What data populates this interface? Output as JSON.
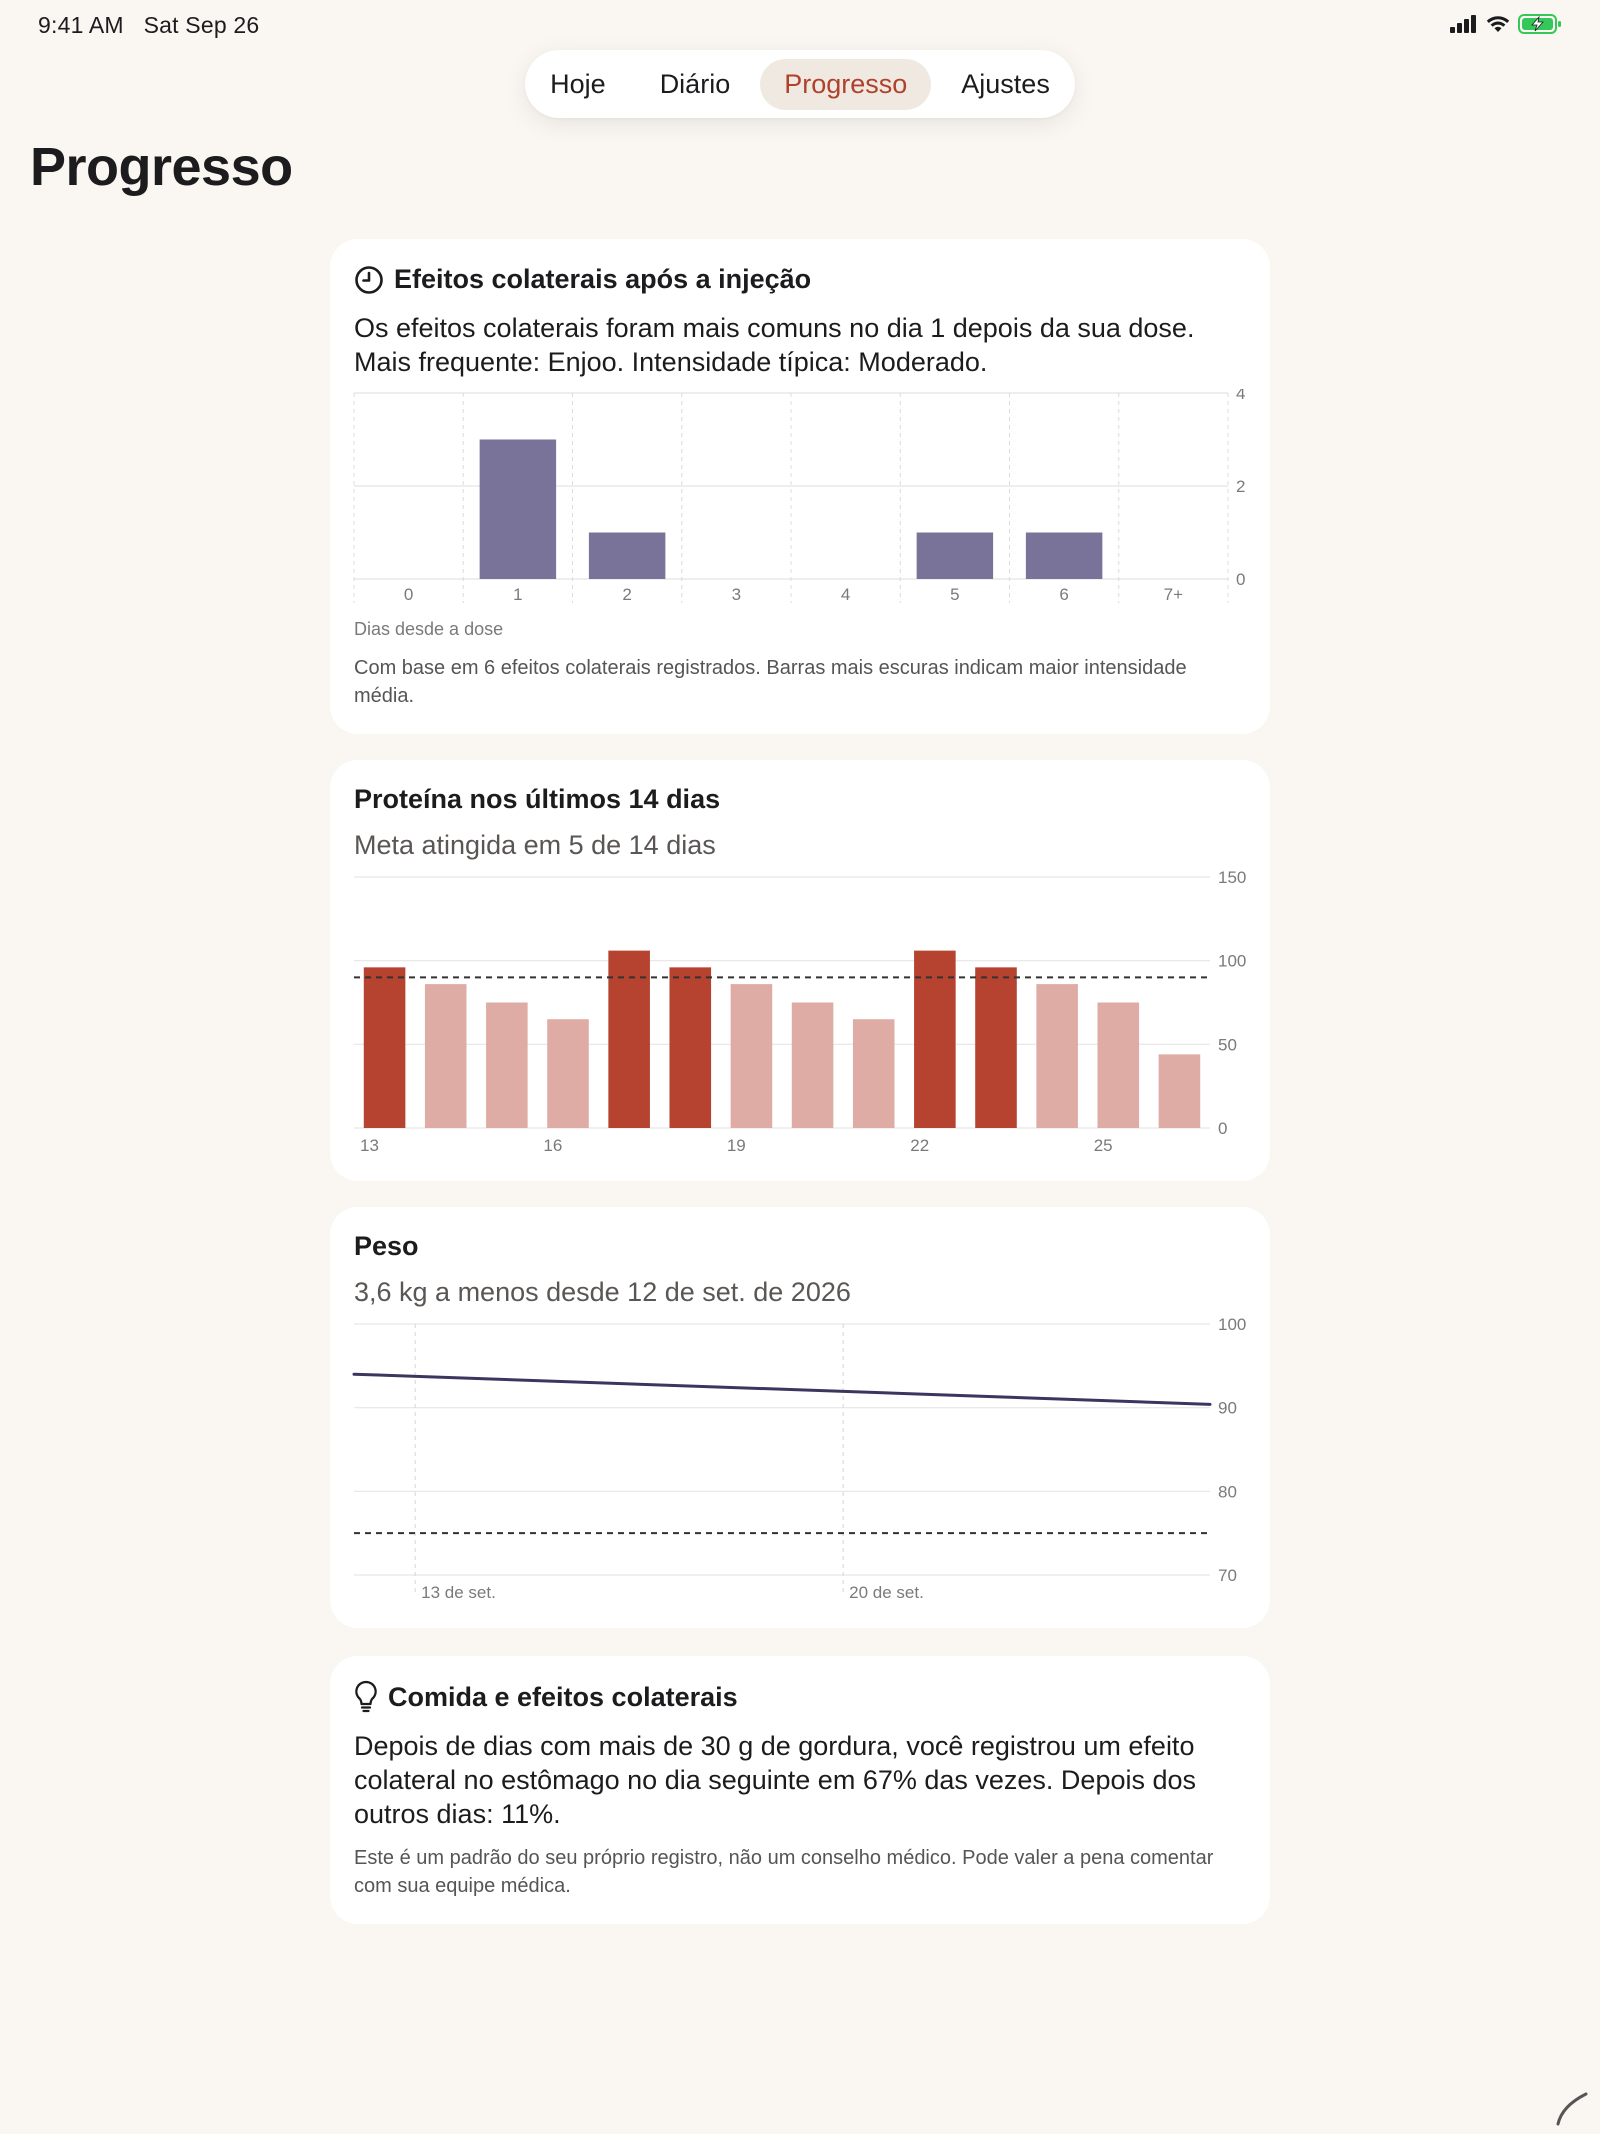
{
  "status": {
    "time": "9:41 AM",
    "date": "Sat Sep 26"
  },
  "nav": {
    "tabs": [
      "Hoje",
      "Diário",
      "Progresso",
      "Ajustes"
    ],
    "active_index": 2
  },
  "page": {
    "title": "Progresso"
  },
  "side_effects": {
    "title": "Efeitos colaterais após a injeção",
    "summary": "Os efeitos colaterais foram mais comuns no dia 1 depois da sua dose. Mais frequente: Enjoo. Intensidade típica: Moderado.",
    "axis_caption": "Dias desde a dose",
    "footnote": "Com base em 6 efeitos colaterais registrados. Barras mais escuras indicam maior intensidade média.",
    "bar_color": "#7a7399"
  },
  "protein": {
    "title": "Proteína nos últimos 14 dias",
    "subtitle": "Meta atingida em 5 de 14 dias",
    "met_color": "#b5432f",
    "unmet_color": "#deaca4"
  },
  "weight": {
    "title": "Peso",
    "subtitle": "3,6 kg a menos desde 12 de set. de 2026",
    "line_color": "#3b3560"
  },
  "food": {
    "title": "Comida e efeitos colaterais",
    "body": "Depois de dias com mais de 30 g de gordura, você registrou um efeito colateral no estômago no dia seguinte em 67% das vezes. Depois dos outros dias: 11%.",
    "note": "Este é um padrão do seu próprio registro, não um conselho médico. Pode valer a pena comentar com sua equipe médica."
  },
  "chart_data": [
    {
      "type": "bar",
      "categories": [
        "0",
        "1",
        "2",
        "3",
        "4",
        "5",
        "6",
        "7+"
      ],
      "values": [
        0,
        3,
        1,
        0,
        0,
        1,
        1,
        0
      ],
      "xlabel": "Dias desde a dose",
      "ylim": [
        0,
        4
      ],
      "yticks": [
        0,
        2,
        4
      ],
      "grid": true
    },
    {
      "type": "bar",
      "categories": [
        13,
        14,
        15,
        16,
        17,
        18,
        19,
        20,
        21,
        22,
        23,
        24,
        25,
        26
      ],
      "x_tick_labels": [
        "13",
        "16",
        "19",
        "22",
        "25"
      ],
      "values": [
        96,
        86,
        75,
        65,
        106,
        96,
        86,
        75,
        65,
        106,
        96,
        86,
        75,
        44
      ],
      "goal_met": [
        true,
        false,
        false,
        false,
        true,
        true,
        false,
        false,
        false,
        true,
        true,
        false,
        false,
        false
      ],
      "goal": 90,
      "ylim": [
        0,
        150
      ],
      "yticks": [
        0,
        50,
        100,
        150
      ],
      "grid": true
    },
    {
      "type": "line",
      "x": [
        "12 de set.",
        "26 de set."
      ],
      "values": [
        94,
        90.4
      ],
      "x_tick_labels": [
        "13 de set.",
        "20 de set."
      ],
      "goal": 75,
      "ylim": [
        70,
        100
      ],
      "yticks": [
        70,
        80,
        90,
        100
      ],
      "grid": true
    }
  ]
}
